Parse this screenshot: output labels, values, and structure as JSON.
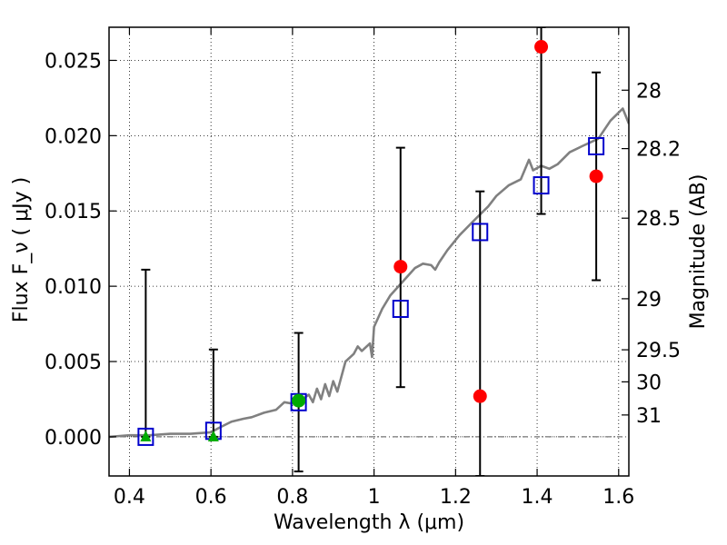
{
  "chart_data": {
    "type": "scatter",
    "title": "",
    "xlabel": "Wavelength  λ (μm)",
    "ylabel": "Flux  F_ν  ( μJy )",
    "y2label": "Magnitude (AB)",
    "xlim": [
      0.35,
      1.625
    ],
    "ylim": [
      -0.0026,
      0.0272
    ],
    "xticks": [
      0.4,
      0.6,
      0.8,
      1.0,
      1.2,
      1.4,
      1.6
    ],
    "xtick_labels": [
      "0.4",
      "0.6",
      "0.8",
      "1",
      "1.2",
      "1.4",
      "1.6"
    ],
    "yticks": [
      0.0,
      0.005,
      0.01,
      0.015,
      0.02,
      0.025
    ],
    "ytick_labels": [
      "0.000",
      "0.005",
      "0.010",
      "0.015",
      "0.020",
      "0.025"
    ],
    "y2ticks": [
      {
        "label": "28",
        "flux": 0.02302
      },
      {
        "label": "28.2",
        "flux": 0.01914
      },
      {
        "label": "28.5",
        "flux": 0.01452
      },
      {
        "label": "29",
        "flux": 0.00917
      },
      {
        "label": "29.5",
        "flux": 0.00578
      },
      {
        "label": "30",
        "flux": 0.00365
      },
      {
        "label": "31",
        "flux": 0.00145
      }
    ],
    "grid": true,
    "colors": {
      "model": "#808080",
      "squares": "#0000cc",
      "circles": "#ff0000",
      "green": "#00aa00",
      "errorbars": "#000000"
    },
    "series": [
      {
        "kind": "line",
        "points": [
          [
            0.35,
            0.0
          ],
          [
            0.4,
            0.0001
          ],
          [
            0.45,
            0.0001
          ],
          [
            0.5,
            0.0002
          ],
          [
            0.55,
            0.0002
          ],
          [
            0.6,
            0.0003
          ],
          [
            0.62,
            0.0006
          ],
          [
            0.65,
            0.001
          ],
          [
            0.68,
            0.0012
          ],
          [
            0.7,
            0.0013
          ],
          [
            0.73,
            0.0016
          ],
          [
            0.76,
            0.0018
          ],
          [
            0.78,
            0.0023
          ],
          [
            0.8,
            0.0022
          ],
          [
            0.82,
            0.0024
          ],
          [
            0.84,
            0.0028
          ],
          [
            0.85,
            0.0023
          ],
          [
            0.86,
            0.0032
          ],
          [
            0.87,
            0.0025
          ],
          [
            0.88,
            0.0035
          ],
          [
            0.89,
            0.0027
          ],
          [
            0.9,
            0.0037
          ],
          [
            0.91,
            0.003
          ],
          [
            0.93,
            0.005
          ],
          [
            0.95,
            0.0055
          ],
          [
            0.96,
            0.006
          ],
          [
            0.97,
            0.0057
          ],
          [
            0.99,
            0.0062
          ],
          [
            0.995,
            0.0053
          ],
          [
            1.0,
            0.0073
          ],
          [
            1.02,
            0.0085
          ],
          [
            1.04,
            0.0094
          ],
          [
            1.07,
            0.0103
          ],
          [
            1.1,
            0.0112
          ],
          [
            1.12,
            0.0115
          ],
          [
            1.14,
            0.0114
          ],
          [
            1.15,
            0.0111
          ],
          [
            1.16,
            0.0116
          ],
          [
            1.18,
            0.0124
          ],
          [
            1.21,
            0.0134
          ],
          [
            1.25,
            0.0145
          ],
          [
            1.28,
            0.0153
          ],
          [
            1.3,
            0.016
          ],
          [
            1.33,
            0.0167
          ],
          [
            1.36,
            0.0171
          ],
          [
            1.38,
            0.0184
          ],
          [
            1.39,
            0.0177
          ],
          [
            1.41,
            0.018
          ],
          [
            1.43,
            0.0178
          ],
          [
            1.45,
            0.0181
          ],
          [
            1.48,
            0.0189
          ],
          [
            1.51,
            0.0193
          ],
          [
            1.55,
            0.0198
          ],
          [
            1.58,
            0.021
          ],
          [
            1.61,
            0.0218
          ],
          [
            1.625,
            0.0208
          ]
        ]
      },
      {
        "kind": "errorbar",
        "items": [
          {
            "x": 0.44,
            "lo": 0.0,
            "hi": 0.0111
          },
          {
            "x": 0.606,
            "lo": 0.0,
            "hi": 0.0058
          },
          {
            "x": 0.815,
            "lo": -0.0023,
            "hi": 0.0069
          },
          {
            "x": 1.065,
            "lo": 0.0033,
            "hi": 0.0192
          },
          {
            "x": 1.26,
            "lo": -0.0026,
            "hi": 0.0163
          },
          {
            "x": 1.41,
            "lo": 0.0148,
            "hi": 0.0272
          },
          {
            "x": 1.545,
            "lo": 0.0104,
            "hi": 0.0242
          }
        ]
      },
      {
        "kind": "square",
        "points": [
          [
            0.44,
            0.0
          ],
          [
            0.606,
            0.0004
          ],
          [
            0.815,
            0.0023
          ],
          [
            1.065,
            0.0085
          ],
          [
            1.26,
            0.0136
          ],
          [
            1.41,
            0.0167
          ],
          [
            1.545,
            0.0193
          ]
        ]
      },
      {
        "kind": "circle-red",
        "points": [
          [
            1.065,
            0.0113
          ],
          [
            1.26,
            0.0027
          ],
          [
            1.41,
            0.0259
          ],
          [
            1.545,
            0.0173
          ]
        ]
      },
      {
        "kind": "circle-green",
        "points": [
          [
            0.815,
            0.0024
          ]
        ]
      },
      {
        "kind": "triangle-green",
        "points": [
          [
            0.44,
            0.0
          ],
          [
            0.606,
            0.0
          ]
        ]
      }
    ]
  }
}
